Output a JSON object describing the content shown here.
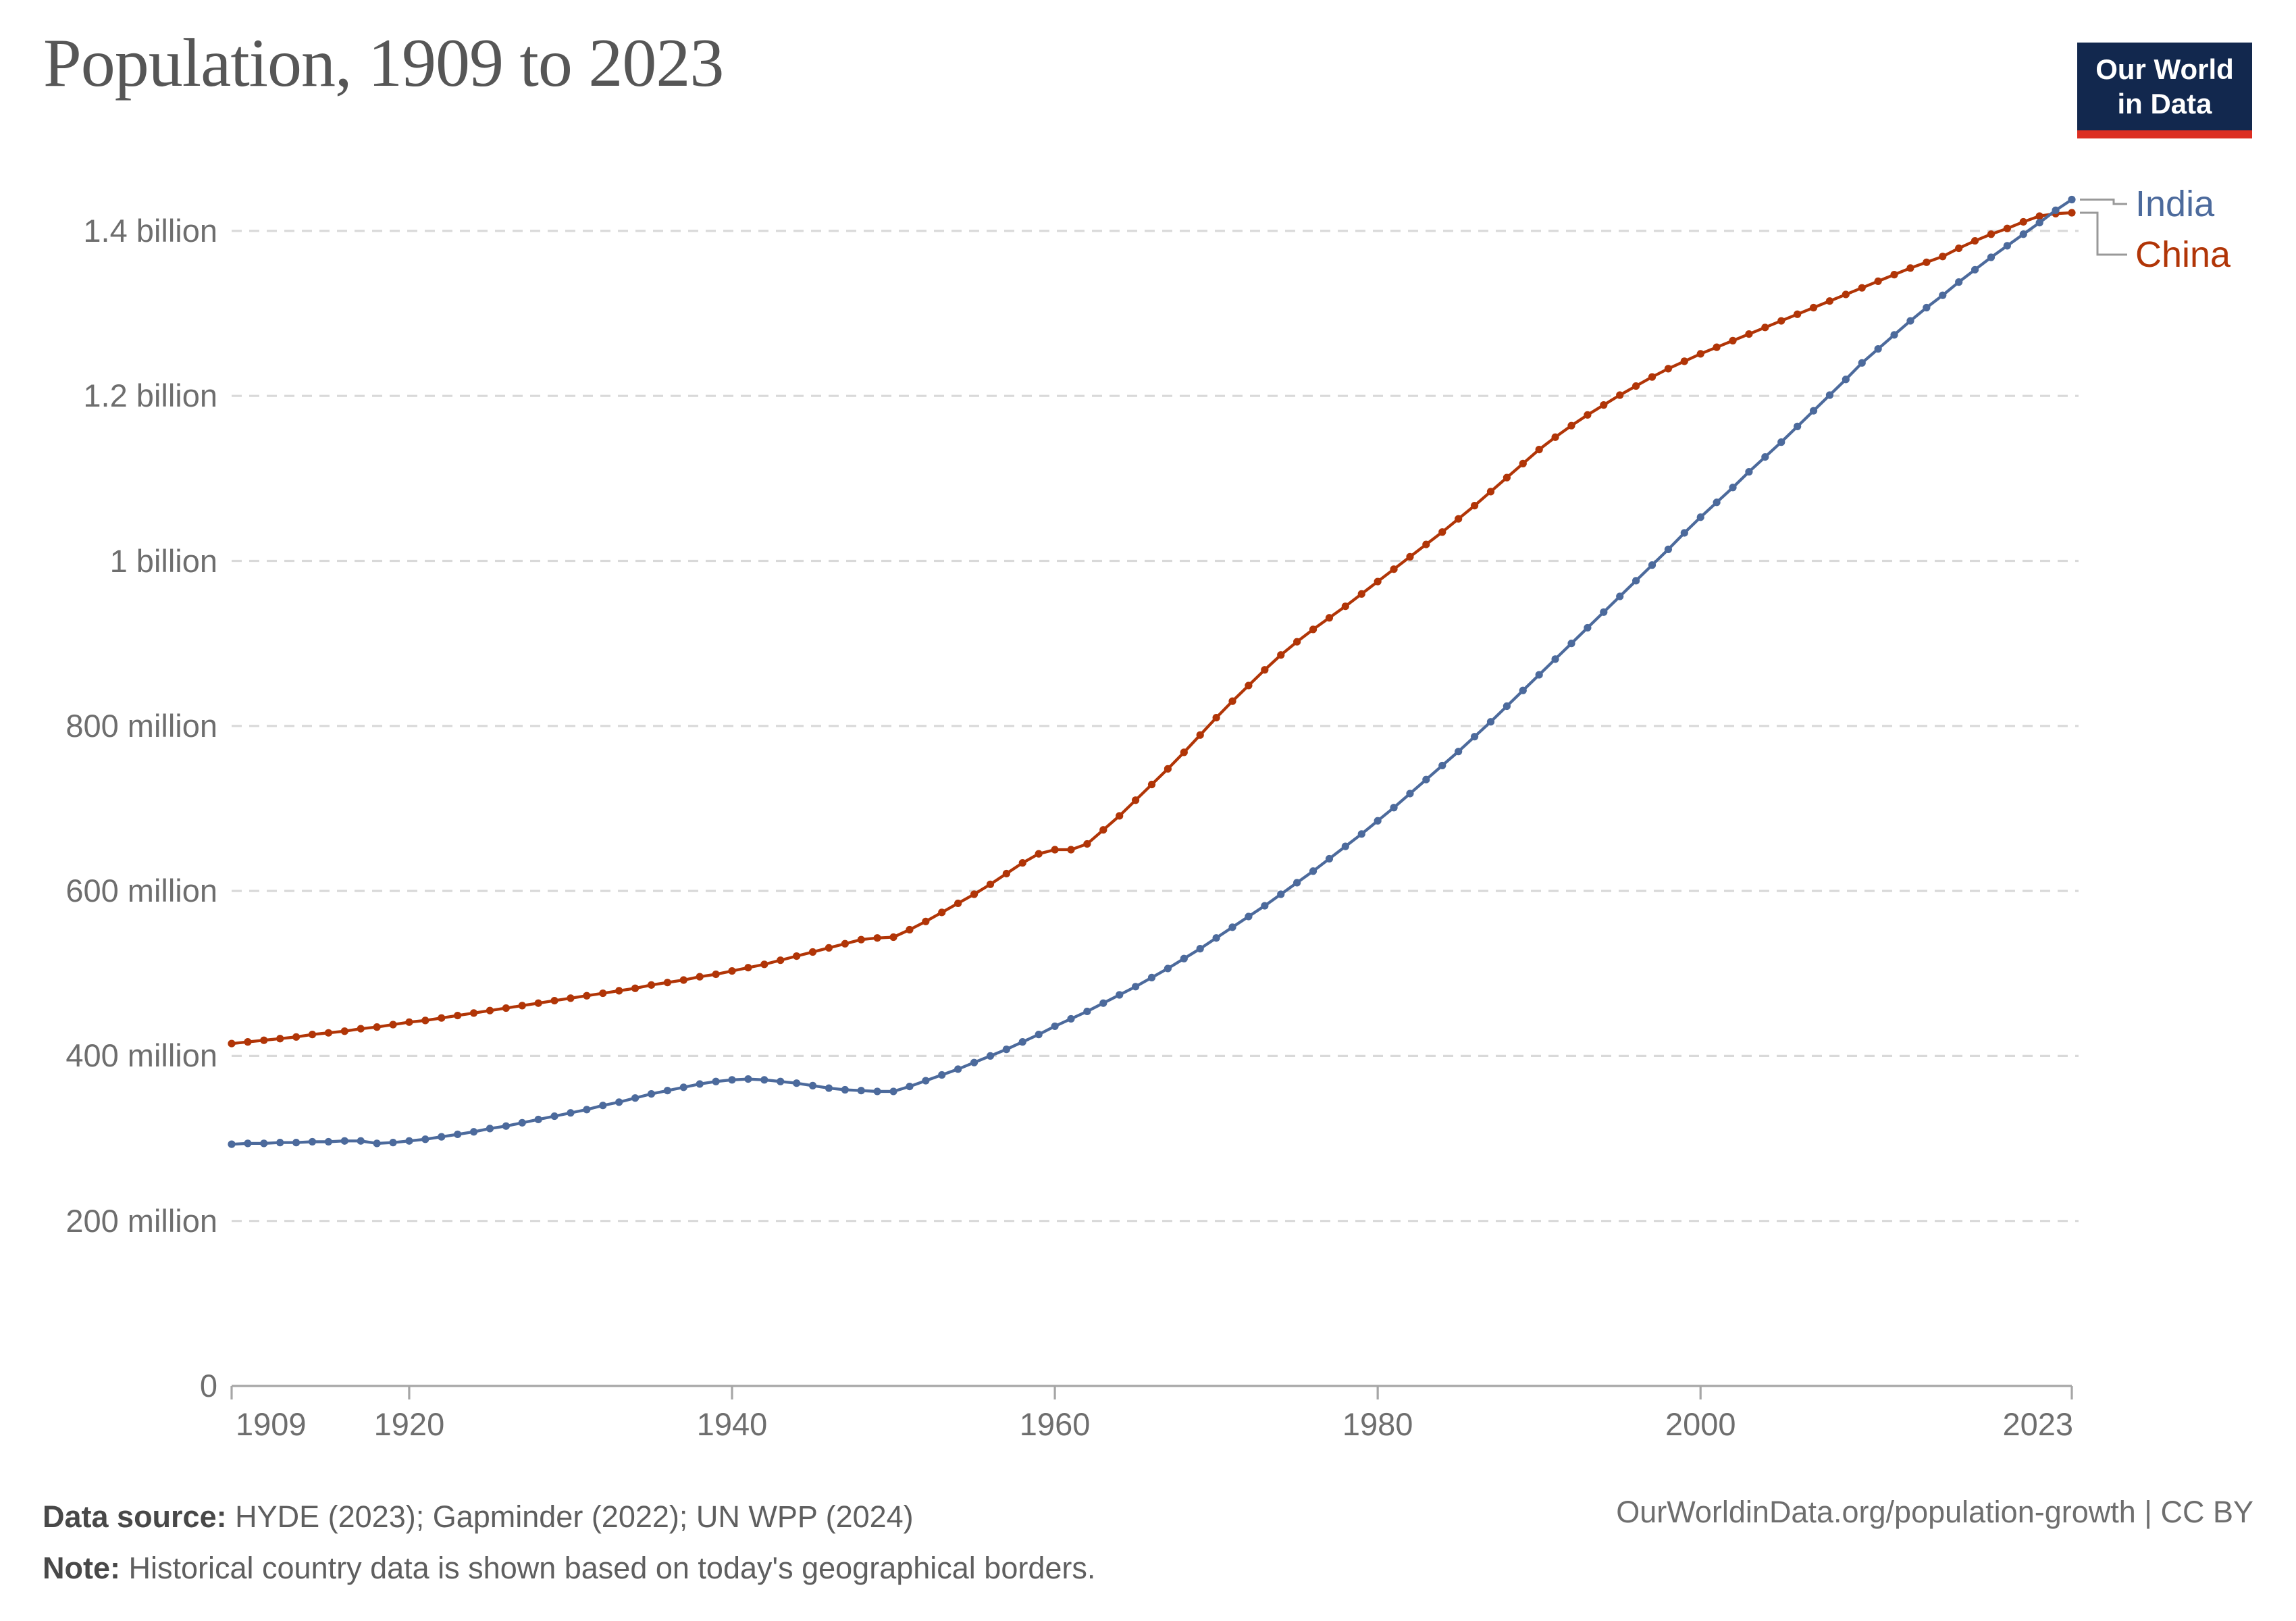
{
  "header": {
    "title": "Population, 1909 to 2023"
  },
  "logo": {
    "line1": "Our World",
    "line2": "in Data",
    "bg_color": "#12284E",
    "bar_color": "#DC2E22"
  },
  "footer": {
    "source_label": "Data source:",
    "source_text": " HYDE (2023); Gapminder (2022); UN WPP (2024)",
    "note_label": "Note:",
    "note_text": " Historical country data is shown based on today's geographical borders.",
    "link": "OurWorldinData.org/population-growth | CC BY"
  },
  "chart_data": {
    "type": "line",
    "title": "Population, 1909 to 2023",
    "xlabel": "",
    "ylabel": "",
    "unit": "people (millions)",
    "xlim": [
      1909,
      2023
    ],
    "ylim_millions": [
      0,
      1450
    ],
    "grid": "horizontal-dashed",
    "legend_position": "right-of-line-endpoints",
    "markers": "circle-every-year",
    "x": [
      1909,
      1910,
      1911,
      1912,
      1913,
      1914,
      1915,
      1916,
      1917,
      1918,
      1919,
      1920,
      1921,
      1922,
      1923,
      1924,
      1925,
      1926,
      1927,
      1928,
      1929,
      1930,
      1931,
      1932,
      1933,
      1934,
      1935,
      1936,
      1937,
      1938,
      1939,
      1940,
      1941,
      1942,
      1943,
      1944,
      1945,
      1946,
      1947,
      1948,
      1949,
      1950,
      1951,
      1952,
      1953,
      1954,
      1955,
      1956,
      1957,
      1958,
      1959,
      1960,
      1961,
      1962,
      1963,
      1964,
      1965,
      1966,
      1967,
      1968,
      1969,
      1970,
      1971,
      1972,
      1973,
      1974,
      1975,
      1976,
      1977,
      1978,
      1979,
      1980,
      1981,
      1982,
      1983,
      1984,
      1985,
      1986,
      1987,
      1988,
      1989,
      1990,
      1991,
      1992,
      1993,
      1994,
      1995,
      1996,
      1997,
      1998,
      1999,
      2000,
      2001,
      2002,
      2003,
      2004,
      2005,
      2006,
      2007,
      2008,
      2009,
      2010,
      2011,
      2012,
      2013,
      2014,
      2015,
      2016,
      2017,
      2018,
      2019,
      2020,
      2021,
      2022,
      2023
    ],
    "series": [
      {
        "name": "India",
        "color": "#4C6A9C",
        "values_millions": [
          293,
          294,
          294,
          295,
          295,
          296,
          296,
          297,
          297,
          294,
          295,
          297,
          299,
          302,
          305,
          308,
          312,
          315,
          319,
          323,
          327,
          331,
          335,
          340,
          344,
          349,
          354,
          358,
          362,
          366,
          369,
          371,
          372,
          371,
          369,
          367,
          364,
          361,
          359,
          358,
          357,
          357,
          363,
          370,
          377,
          384,
          392,
          400,
          408,
          417,
          426,
          436,
          445,
          454,
          464,
          474,
          484,
          495,
          506,
          518,
          530,
          543,
          556,
          569,
          582,
          596,
          610,
          624,
          639,
          654,
          669,
          685,
          701,
          718,
          735,
          752,
          769,
          787,
          805,
          824,
          843,
          862,
          881,
          900,
          919,
          938,
          957,
          976,
          995,
          1014,
          1034,
          1053,
          1071,
          1089,
          1108,
          1126,
          1144,
          1163,
          1182,
          1201,
          1220,
          1240,
          1257,
          1274,
          1291,
          1307,
          1322,
          1338,
          1353,
          1368,
          1382,
          1396,
          1410,
          1425,
          1438
        ]
      },
      {
        "name": "China",
        "color": "#B13507",
        "values_millions": [
          415,
          417,
          419,
          421,
          423,
          426,
          428,
          430,
          433,
          435,
          438,
          441,
          443,
          446,
          449,
          452,
          455,
          458,
          461,
          464,
          467,
          470,
          473,
          476,
          479,
          482,
          486,
          489,
          492,
          496,
          499,
          503,
          507,
          511,
          516,
          521,
          526,
          531,
          536,
          541,
          543,
          544,
          553,
          563,
          574,
          585,
          596,
          608,
          621,
          634,
          645,
          650,
          650,
          657,
          674,
          691,
          710,
          729,
          748,
          768,
          789,
          810,
          830,
          849,
          868,
          886,
          902,
          917,
          931,
          945,
          960,
          975,
          990,
          1005,
          1020,
          1035,
          1051,
          1067,
          1084,
          1101,
          1118,
          1135,
          1150,
          1164,
          1177,
          1189,
          1201,
          1212,
          1223,
          1233,
          1242,
          1251,
          1259,
          1267,
          1275,
          1283,
          1291,
          1299,
          1307,
          1315,
          1323,
          1331,
          1339,
          1347,
          1355,
          1362,
          1369,
          1379,
          1388,
          1396,
          1403,
          1411,
          1418,
          1421,
          1422
        ]
      }
    ],
    "y_ticks": [
      {
        "value": 0,
        "label": "0"
      },
      {
        "value": 200,
        "label": "200 million"
      },
      {
        "value": 400,
        "label": "400 million"
      },
      {
        "value": 600,
        "label": "600 million"
      },
      {
        "value": 800,
        "label": "800 million"
      },
      {
        "value": 1000,
        "label": "1 billion"
      },
      {
        "value": 1200,
        "label": "1.2 billion"
      },
      {
        "value": 1400,
        "label": "1.4 billion"
      }
    ],
    "x_ticks": [
      {
        "year": 1909,
        "label": "1909",
        "align": "left"
      },
      {
        "year": 1920,
        "label": "1920",
        "align": "center"
      },
      {
        "year": 1940,
        "label": "1940",
        "align": "center"
      },
      {
        "year": 1960,
        "label": "1960",
        "align": "center"
      },
      {
        "year": 1980,
        "label": "1980",
        "align": "center"
      },
      {
        "year": 2000,
        "label": "2000",
        "align": "center"
      },
      {
        "year": 2023,
        "label": "2023",
        "align": "right"
      }
    ],
    "styles": {
      "gridline_color": "#d9d9d9",
      "axis_color": "#a6a6a6",
      "connector_color": "#999999"
    }
  }
}
